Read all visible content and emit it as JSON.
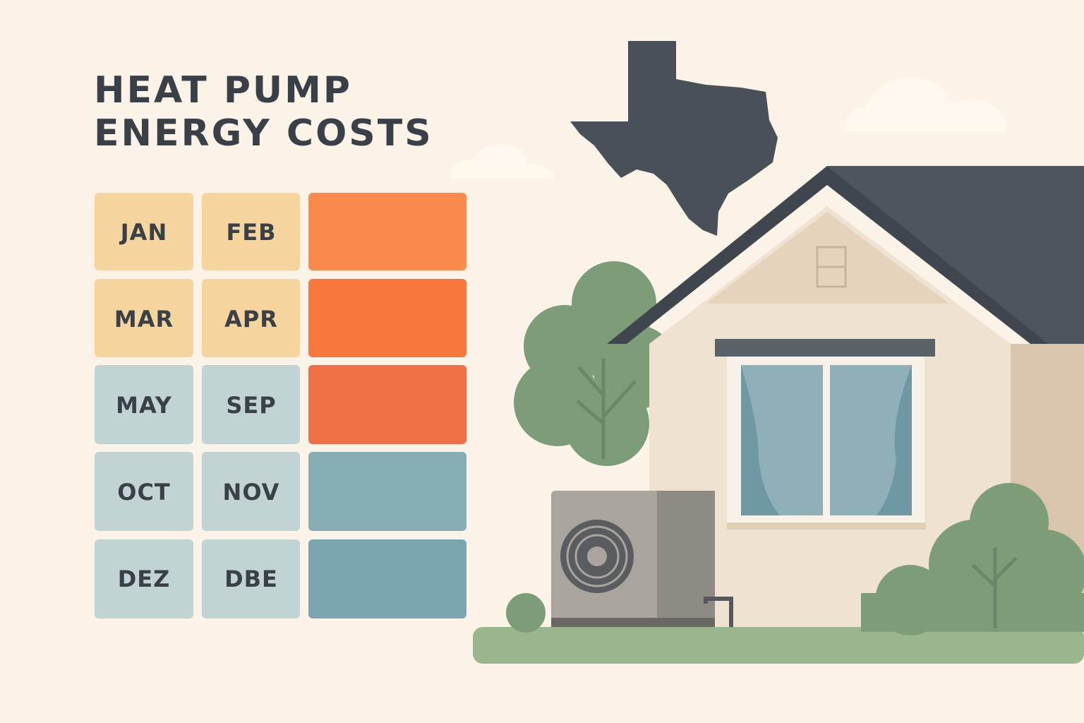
{
  "header": {
    "title_lines": [
      "HEAT PUMP",
      "ENERGY COSTS"
    ]
  },
  "grid": {
    "rows": [
      [
        "JAN",
        "FEB"
      ],
      [
        "MAR",
        "APR"
      ],
      [
        "MAY",
        "SEP"
      ],
      [
        "OCT",
        "NOV"
      ],
      [
        "DEZ",
        "DBE"
      ]
    ]
  }
}
